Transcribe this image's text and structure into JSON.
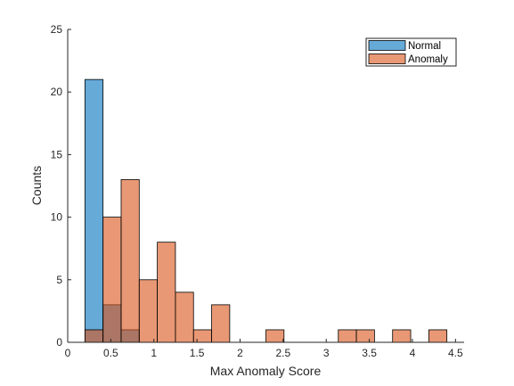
{
  "chart_data": {
    "type": "bar",
    "subtype": "histogram",
    "xlabel": "Max Anomaly Score",
    "ylabel": "Counts",
    "xlim": [
      0,
      4.6
    ],
    "ylim": [
      0,
      25
    ],
    "xticks": [
      0,
      0.5,
      1,
      1.5,
      2,
      2.5,
      3,
      3.5,
      4,
      4.5
    ],
    "xtick_labels": [
      "0",
      "0.5",
      "1",
      "1.5",
      "2",
      "2.5",
      "3",
      "3.5",
      "4",
      "4.5"
    ],
    "yticks": [
      0,
      5,
      10,
      15,
      20,
      25
    ],
    "ytick_labels": [
      "0",
      "5",
      "10",
      "15",
      "20",
      "25"
    ],
    "grid": false,
    "legend_position": "top-right",
    "bin_edges": [
      0.2,
      0.41,
      0.62,
      0.83,
      1.04,
      1.25,
      1.46,
      1.67,
      1.88,
      2.09,
      2.3,
      2.51,
      2.72,
      2.93,
      3.14,
      3.35,
      3.56,
      3.77,
      3.98,
      4.19,
      4.4
    ],
    "series": [
      {
        "name": "Normal",
        "color": "#0072BD",
        "values": [
          21,
          3,
          1,
          0,
          0,
          0,
          0,
          0,
          0,
          0,
          0,
          0,
          0,
          0,
          0,
          0,
          0,
          0,
          0,
          0
        ]
      },
      {
        "name": "Anomaly",
        "color": "#D95319",
        "values": [
          1,
          10,
          13,
          5,
          8,
          4,
          1,
          3,
          0,
          0,
          1,
          0,
          0,
          0,
          1,
          1,
          0,
          1,
          0,
          1
        ]
      }
    ]
  }
}
